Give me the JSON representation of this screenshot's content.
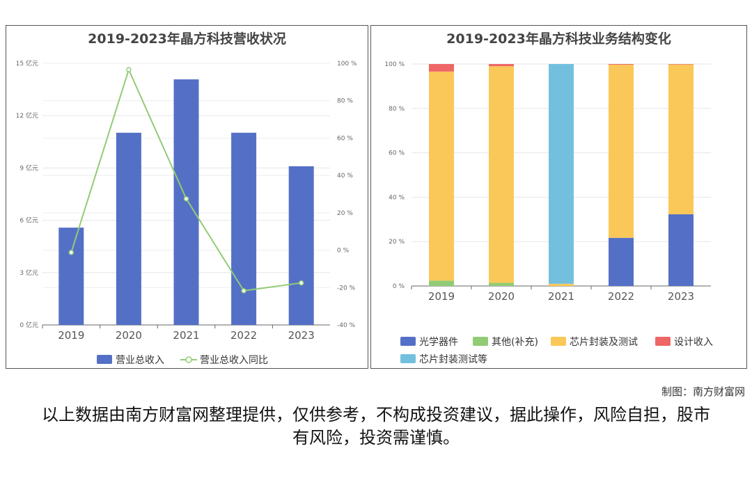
{
  "chart_data": [
    {
      "type": "bar",
      "title": "2019-2023年晶方科技营收状况",
      "categories": [
        "2019",
        "2020",
        "2021",
        "2022",
        "2023"
      ],
      "series": [
        {
          "name": "营业总收入",
          "type": "bar",
          "axis": "left",
          "values": [
            5.58,
            11.02,
            14.08,
            11.02,
            9.1
          ],
          "color": "#5470c6"
        },
        {
          "name": "营业总收入同比",
          "type": "line",
          "axis": "right",
          "values": [
            -1.2,
            96.6,
            27.5,
            -21.7,
            -17.5
          ],
          "color": "#91cc75"
        }
      ],
      "ylim": [
        0,
        15
      ],
      "yticks": [
        "0 亿元",
        "3 亿元",
        "6 亿元",
        "9 亿元",
        "12 亿元",
        "15 亿元"
      ],
      "y2lim": [
        -40,
        100
      ],
      "y2ticks": [
        "-40 %",
        "-20 %",
        "0 %",
        "20 %",
        "40 %",
        "60 %",
        "80 %",
        "100 %"
      ],
      "grid": true,
      "legend": "bottom"
    },
    {
      "type": "bar",
      "stacked": true,
      "title": "2019-2023年晶方科技业务结构变化",
      "categories": [
        "2019",
        "2020",
        "2021",
        "2022",
        "2023"
      ],
      "series": [
        {
          "name": "光学器件",
          "values": [
            0,
            0,
            0,
            21.7,
            32.3
          ],
          "color": "#5470c6"
        },
        {
          "name": "其他(补充)",
          "values": [
            2.4,
            1.4,
            0,
            0,
            0
          ],
          "color": "#91cc75"
        },
        {
          "name": "芯片封装及测试",
          "values": [
            94.2,
            97.6,
            1,
            78,
            67.5
          ],
          "color": "#fac858"
        },
        {
          "name": "设计收入",
          "values": [
            3.4,
            1,
            0,
            0.3,
            0.2
          ],
          "color": "#ee6666"
        },
        {
          "name": "芯片封装测试等",
          "values": [
            0,
            0,
            99,
            0,
            0
          ],
          "color": "#73c0de"
        }
      ],
      "ylim": [
        0,
        100
      ],
      "yticks": [
        "0 %",
        "20 %",
        "40 %",
        "60 %",
        "80 %",
        "100 %"
      ],
      "grid": true,
      "legend": "bottom"
    }
  ],
  "credit": "制图：南方财富网",
  "disclaimer": "以上数据由南方财富网整理提供，仅供参考，不构成投资建议，据此操作，风险自担，股市有风险，投资需谨慎。"
}
